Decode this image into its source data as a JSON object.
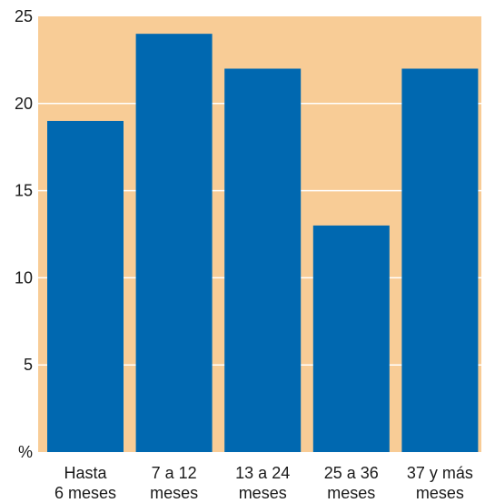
{
  "chart_data": {
    "type": "bar",
    "categories": [
      [
        "Hasta",
        "6 meses"
      ],
      [
        "7 a 12",
        "meses"
      ],
      [
        "13 a 24",
        "meses"
      ],
      [
        "25 a 36",
        "meses"
      ],
      [
        "37 y más",
        "meses"
      ]
    ],
    "values": [
      19,
      24,
      22,
      13,
      22
    ],
    "ylim": [
      0,
      25
    ],
    "yticks": [
      5,
      10,
      15,
      20,
      25
    ],
    "ytick_labels": [
      "5",
      "10",
      "15",
      "20",
      "25"
    ],
    "y_unit_label": "%",
    "grid": true,
    "colors": {
      "plot_background": "#f8cc96",
      "bar": "#0068b0",
      "grid": "#ffffff"
    }
  }
}
